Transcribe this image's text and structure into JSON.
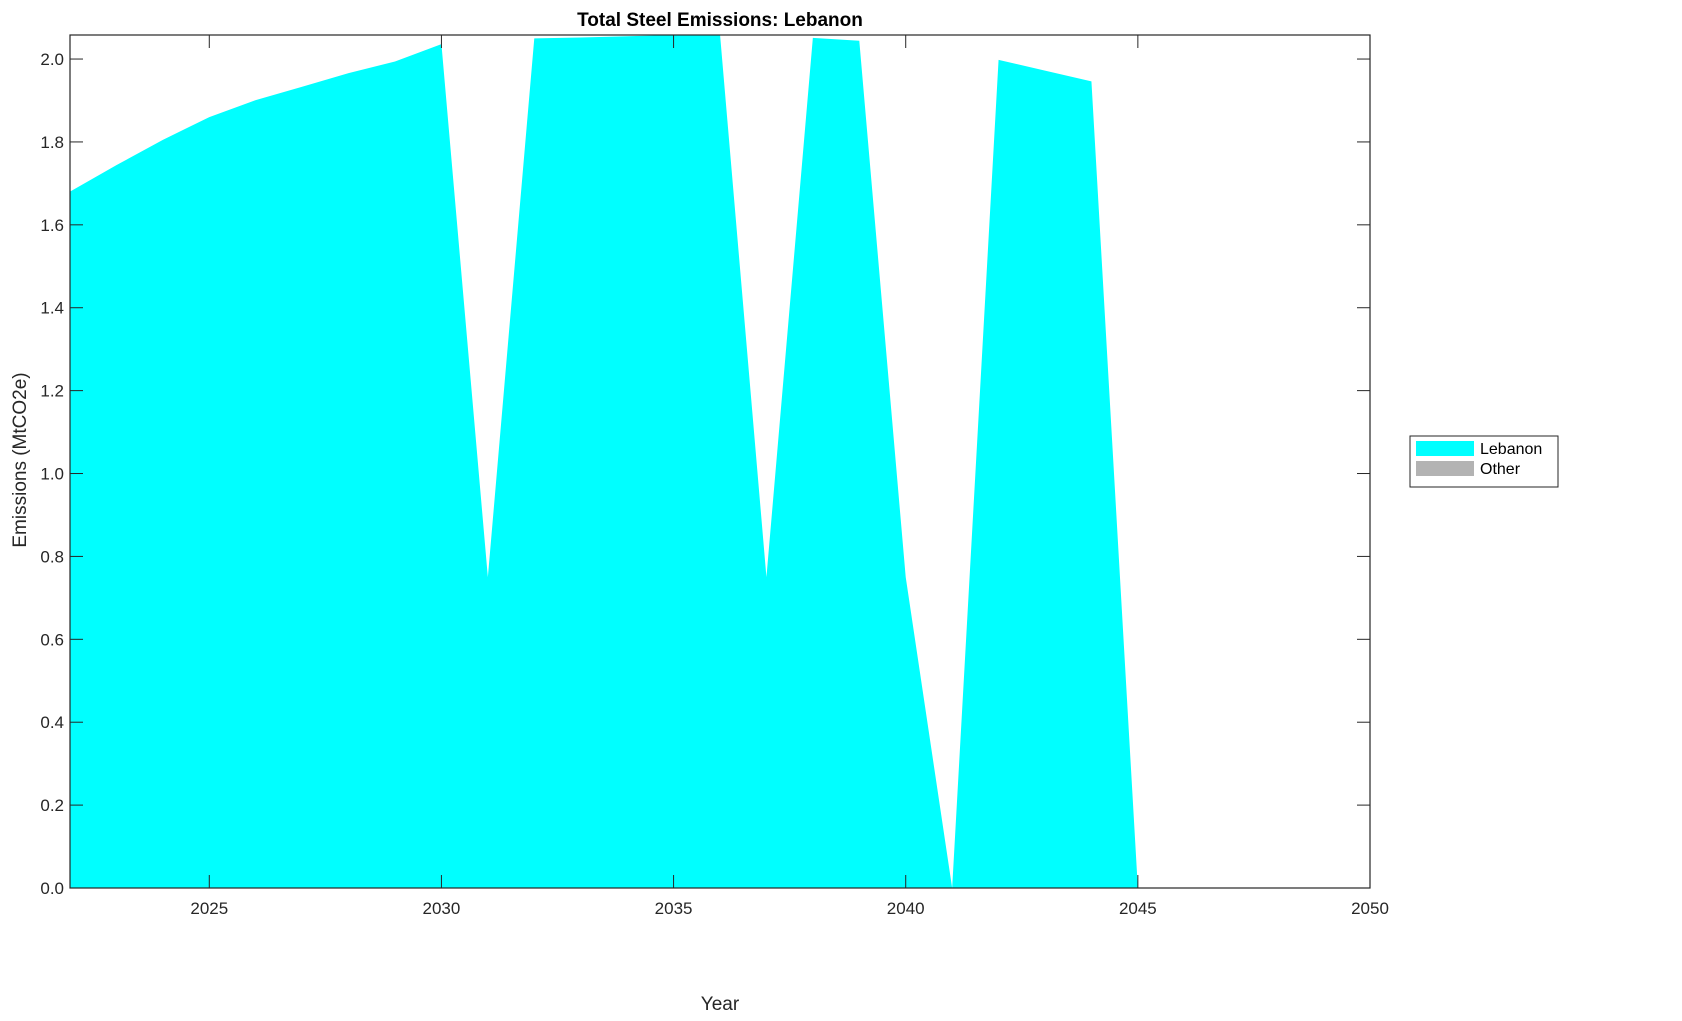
{
  "chart_data": {
    "type": "area",
    "title": "Total Steel Emissions: Lebanon",
    "xlabel": "Year",
    "ylabel": "Emissions (MtCO2e)",
    "xlim": [
      2022,
      2050
    ],
    "ylim": [
      0,
      2.058
    ],
    "xticks": [
      2025,
      2030,
      2035,
      2040,
      2045,
      2050
    ],
    "yticks": [
      0.0,
      0.2,
      0.4,
      0.6,
      0.8,
      1.0,
      1.2,
      1.4,
      1.6,
      1.8,
      2.0
    ],
    "ytick_labels": [
      "0.0",
      "0.2",
      "0.4",
      "0.6",
      "0.8",
      "1.0",
      "1.2",
      "1.4",
      "1.6",
      "1.8",
      "2.0"
    ],
    "grid": false,
    "legend_placement": "outside-right",
    "x": [
      2022,
      2023,
      2024,
      2025,
      2026,
      2027,
      2028,
      2029,
      2030,
      2031,
      2032,
      2033,
      2034,
      2035,
      2036,
      2037,
      2038,
      2039,
      2040,
      2041,
      2042,
      2043,
      2044,
      2045,
      2046,
      2047,
      2048,
      2049,
      2050
    ],
    "series": [
      {
        "name": "Lebanon",
        "color": "#00FFFF",
        "values": [
          1.68,
          1.744,
          1.805,
          1.86,
          1.901,
          1.933,
          1.966,
          1.994,
          2.036,
          0.75,
          2.05,
          2.052,
          2.055,
          2.058,
          2.06,
          0.75,
          2.051,
          2.044,
          0.75,
          0.0,
          1.998,
          1.972,
          1.946,
          0.0,
          0.0,
          0.0,
          0.0,
          0.0,
          0.0
        ]
      },
      {
        "name": "Other",
        "color": "#B3B3B3",
        "values": [
          0,
          0,
          0,
          0,
          0,
          0,
          0,
          0,
          0,
          0,
          0,
          0,
          0,
          0,
          0,
          0,
          0,
          0,
          0,
          0,
          0,
          0,
          0,
          0,
          0,
          0,
          0,
          0,
          0
        ]
      }
    ]
  }
}
